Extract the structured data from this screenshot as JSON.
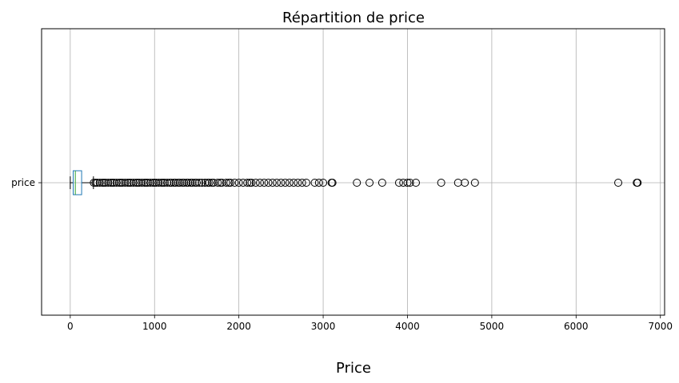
{
  "chart_data": {
    "type": "boxplot",
    "title": "Répartition de price",
    "xlabel": "Price",
    "ylabel": "",
    "orientation": "horizontal",
    "categories": [
      "price"
    ],
    "xlim": [
      -340,
      7050
    ],
    "xticks": [
      0,
      1000,
      2000,
      3000,
      4000,
      5000,
      6000,
      7000
    ],
    "xtick_labels": [
      "0",
      "1000",
      "2000",
      "3000",
      "4000",
      "5000",
      "6000",
      "7000"
    ],
    "grid": true,
    "box": {
      "whisker_low": 0,
      "q1": 35,
      "median": 60,
      "q3": 135,
      "whisker_high": 275
    },
    "outliers": [
      280,
      300,
      320,
      350,
      380,
      400,
      420,
      450,
      480,
      500,
      520,
      550,
      580,
      600,
      620,
      650,
      680,
      700,
      720,
      750,
      780,
      800,
      820,
      850,
      880,
      900,
      920,
      950,
      980,
      1000,
      1020,
      1050,
      1080,
      1100,
      1120,
      1150,
      1180,
      1200,
      1230,
      1250,
      1280,
      1300,
      1330,
      1350,
      1380,
      1400,
      1430,
      1450,
      1480,
      1500,
      1530,
      1560,
      1600,
      1630,
      1650,
      1680,
      1700,
      1750,
      1780,
      1800,
      1850,
      1880,
      1900,
      1950,
      2000,
      2050,
      2100,
      2130,
      2150,
      2200,
      2250,
      2300,
      2350,
      2400,
      2450,
      2500,
      2550,
      2600,
      2650,
      2700,
      2750,
      2800,
      2900,
      2950,
      3000,
      3100,
      3110,
      3400,
      3550,
      3700,
      3900,
      3950,
      4000,
      4030,
      4100,
      4400,
      4600,
      4680,
      4800,
      6500,
      6720,
      6730
    ],
    "colors": {
      "box": "#1f77b4",
      "median": "#2ca02c",
      "whisker": "#000000",
      "grid": "#b0b0b0"
    }
  }
}
